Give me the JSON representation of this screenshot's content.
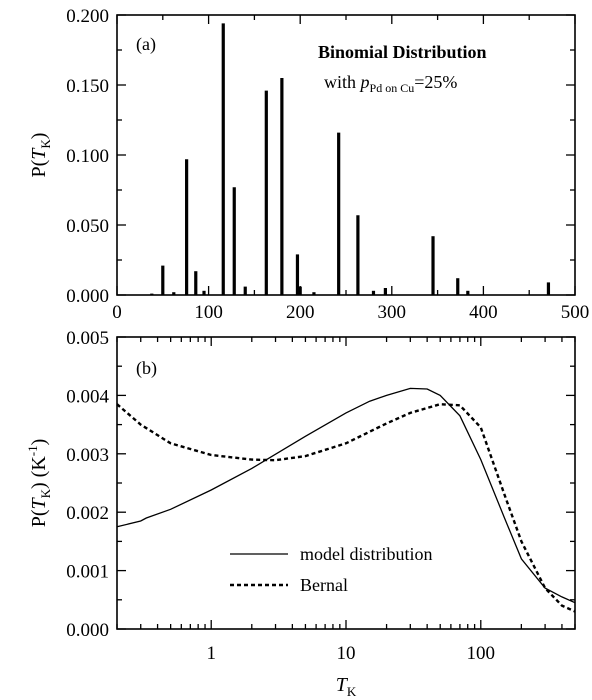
{
  "chart_data": [
    {
      "panel": "(a)",
      "type": "bar",
      "ylabel_main": "P(",
      "ylabel_italic": "T",
      "ylabel_sub": "K",
      "ylabel_close": ")",
      "xlim": [
        0,
        500
      ],
      "ylim": [
        0,
        0.2
      ],
      "xticks": [
        0,
        100,
        200,
        300,
        400,
        500
      ],
      "xtick_labels": [
        "0",
        "100",
        "200",
        "300",
        "400",
        "500"
      ],
      "yticks": [
        0,
        0.05,
        0.1,
        0.15,
        0.2
      ],
      "ytick_labels": [
        "0.000",
        "0.050",
        "0.100",
        "0.150",
        "0.200"
      ],
      "annotation": {
        "title": "Binomial Distribution",
        "with_text": "with ",
        "p_italic": "p",
        "p_sub": "Pd on Cu",
        "p_value": "=25%"
      },
      "bars": [
        {
          "x": 38,
          "y": 0.001
        },
        {
          "x": 50,
          "y": 0.021
        },
        {
          "x": 62,
          "y": 0.002
        },
        {
          "x": 76,
          "y": 0.097
        },
        {
          "x": 86,
          "y": 0.017
        },
        {
          "x": 95,
          "y": 0.003
        },
        {
          "x": 116,
          "y": 0.194
        },
        {
          "x": 128,
          "y": 0.077
        },
        {
          "x": 140,
          "y": 0.006
        },
        {
          "x": 163,
          "y": 0.146
        },
        {
          "x": 180,
          "y": 0.155
        },
        {
          "x": 197,
          "y": 0.029
        },
        {
          "x": 200,
          "y": 0.006
        },
        {
          "x": 215,
          "y": 0.002
        },
        {
          "x": 242,
          "y": 0.116
        },
        {
          "x": 263,
          "y": 0.057
        },
        {
          "x": 280,
          "y": 0.003
        },
        {
          "x": 293,
          "y": 0.005
        },
        {
          "x": 345,
          "y": 0.042
        },
        {
          "x": 372,
          "y": 0.012
        },
        {
          "x": 383,
          "y": 0.003
        },
        {
          "x": 471,
          "y": 0.009
        }
      ]
    },
    {
      "panel": "(b)",
      "type": "line",
      "x_scale": "log",
      "xlabel_italic": "T",
      "xlabel_sub": "K",
      "ylabel_main": "P(",
      "ylabel_italic": "T",
      "ylabel_sub": "K",
      "ylabel_close": ") (K",
      "ylabel_sup": "-1",
      "ylabel_end": ")",
      "xlim": [
        0.2,
        500
      ],
      "ylim": [
        0,
        0.005
      ],
      "xticks": [
        1,
        10,
        100
      ],
      "xtick_labels": [
        "1",
        "10",
        "100"
      ],
      "yticks": [
        0,
        0.001,
        0.002,
        0.003,
        0.004,
        0.005
      ],
      "ytick_labels": [
        "0.000",
        "0.001",
        "0.002",
        "0.003",
        "0.004",
        "0.005"
      ],
      "legend_position": "center",
      "series": [
        {
          "name": "model distribution",
          "style": "solid",
          "x": [
            0.2,
            0.3,
            0.33,
            0.5,
            1,
            2,
            5,
            10,
            15,
            20,
            30,
            40,
            50,
            70,
            100,
            150,
            200,
            300,
            400,
            500
          ],
          "y": [
            0.00175,
            0.00185,
            0.0019,
            0.00205,
            0.00238,
            0.00275,
            0.0033,
            0.0037,
            0.0039,
            0.004,
            0.00412,
            0.00411,
            0.004,
            0.00365,
            0.0029,
            0.0019,
            0.0012,
            0.0007,
            0.00055,
            0.00045
          ]
        },
        {
          "name": "Bernal",
          "style": "dashed",
          "x": [
            0.2,
            0.3,
            0.5,
            1,
            2,
            3,
            5,
            10,
            20,
            30,
            50,
            70,
            100,
            150,
            200,
            300,
            400,
            500
          ],
          "y": [
            0.00385,
            0.0035,
            0.00318,
            0.00298,
            0.0029,
            0.00289,
            0.00296,
            0.00318,
            0.00352,
            0.0037,
            0.00385,
            0.00383,
            0.00345,
            0.0023,
            0.0015,
            0.0007,
            0.0004,
            0.0003
          ]
        }
      ]
    }
  ]
}
